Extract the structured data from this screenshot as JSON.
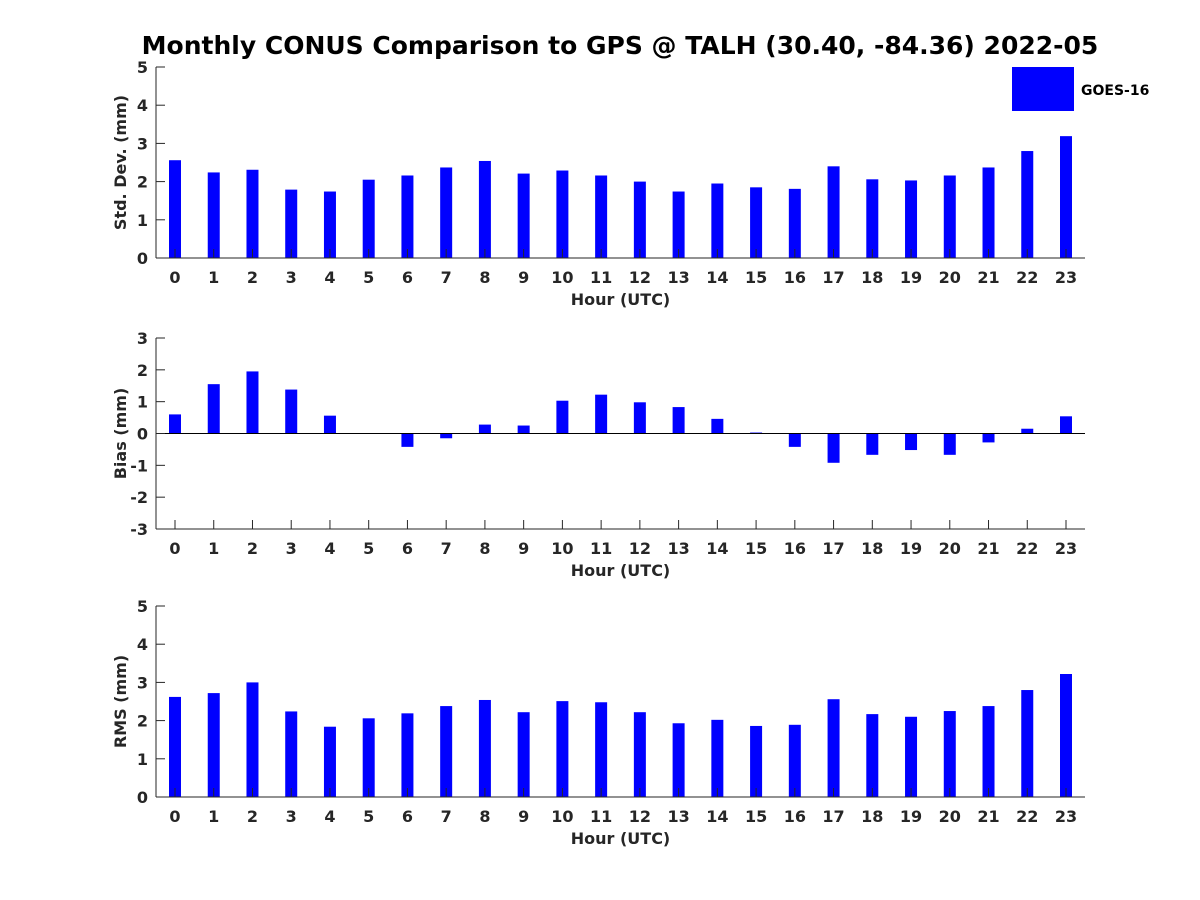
{
  "title": "Monthly CONUS Comparison to GPS @ TALH (30.40, -84.36) 2022-05",
  "legend": {
    "label": "GOES-16",
    "color": "#0000ff",
    "placement": "top-right"
  },
  "chart_data": [
    {
      "type": "bar",
      "xlabel": "Hour (UTC)",
      "ylabel": "Std. Dev. (mm)",
      "ylim": [
        0,
        5
      ],
      "yticks": [
        "0",
        "1",
        "2",
        "3",
        "4",
        "5"
      ],
      "categories": [
        "0",
        "1",
        "2",
        "3",
        "4",
        "5",
        "6",
        "7",
        "8",
        "9",
        "10",
        "11",
        "12",
        "13",
        "14",
        "15",
        "16",
        "17",
        "18",
        "19",
        "20",
        "21",
        "22",
        "23"
      ],
      "series": [
        {
          "name": "GOES-16",
          "color": "#0000ff",
          "values": [
            2.56,
            2.24,
            2.31,
            1.79,
            1.74,
            2.05,
            2.16,
            2.37,
            2.54,
            2.21,
            2.29,
            2.16,
            2.0,
            1.74,
            1.95,
            1.85,
            1.81,
            2.4,
            2.06,
            2.03,
            2.16,
            2.37,
            2.8,
            3.19
          ]
        }
      ],
      "grid": false
    },
    {
      "type": "bar",
      "xlabel": "Hour (UTC)",
      "ylabel": "Bias (mm)",
      "ylim": [
        -3,
        3
      ],
      "yticks": [
        "-3",
        "-2",
        "-1",
        "0",
        "1",
        "2",
        "3"
      ],
      "categories": [
        "0",
        "1",
        "2",
        "3",
        "4",
        "5",
        "6",
        "7",
        "8",
        "9",
        "10",
        "11",
        "12",
        "13",
        "14",
        "15",
        "16",
        "17",
        "18",
        "19",
        "20",
        "21",
        "22",
        "23"
      ],
      "series": [
        {
          "name": "GOES-16",
          "color": "#0000ff",
          "values": [
            0.6,
            1.55,
            1.95,
            1.38,
            0.56,
            0.0,
            -0.42,
            -0.15,
            0.28,
            0.25,
            1.03,
            1.22,
            0.98,
            0.83,
            0.46,
            0.03,
            -0.42,
            -0.92,
            -0.67,
            -0.52,
            -0.67,
            -0.28,
            0.15,
            0.54
          ]
        }
      ],
      "grid": false,
      "zero_line": true
    },
    {
      "type": "bar",
      "xlabel": "Hour (UTC)",
      "ylabel": "RMS (mm)",
      "ylim": [
        0,
        5
      ],
      "yticks": [
        "0",
        "1",
        "2",
        "3",
        "4",
        "5"
      ],
      "categories": [
        "0",
        "1",
        "2",
        "3",
        "4",
        "5",
        "6",
        "7",
        "8",
        "9",
        "10",
        "11",
        "12",
        "13",
        "14",
        "15",
        "16",
        "17",
        "18",
        "19",
        "20",
        "21",
        "22",
        "23"
      ],
      "series": [
        {
          "name": "GOES-16",
          "color": "#0000ff",
          "values": [
            2.62,
            2.72,
            3.0,
            2.24,
            1.84,
            2.06,
            2.19,
            2.38,
            2.54,
            2.22,
            2.51,
            2.48,
            2.22,
            1.93,
            2.02,
            1.86,
            1.89,
            2.56,
            2.17,
            2.1,
            2.25,
            2.38,
            2.8,
            3.22
          ]
        }
      ],
      "grid": false
    }
  ]
}
